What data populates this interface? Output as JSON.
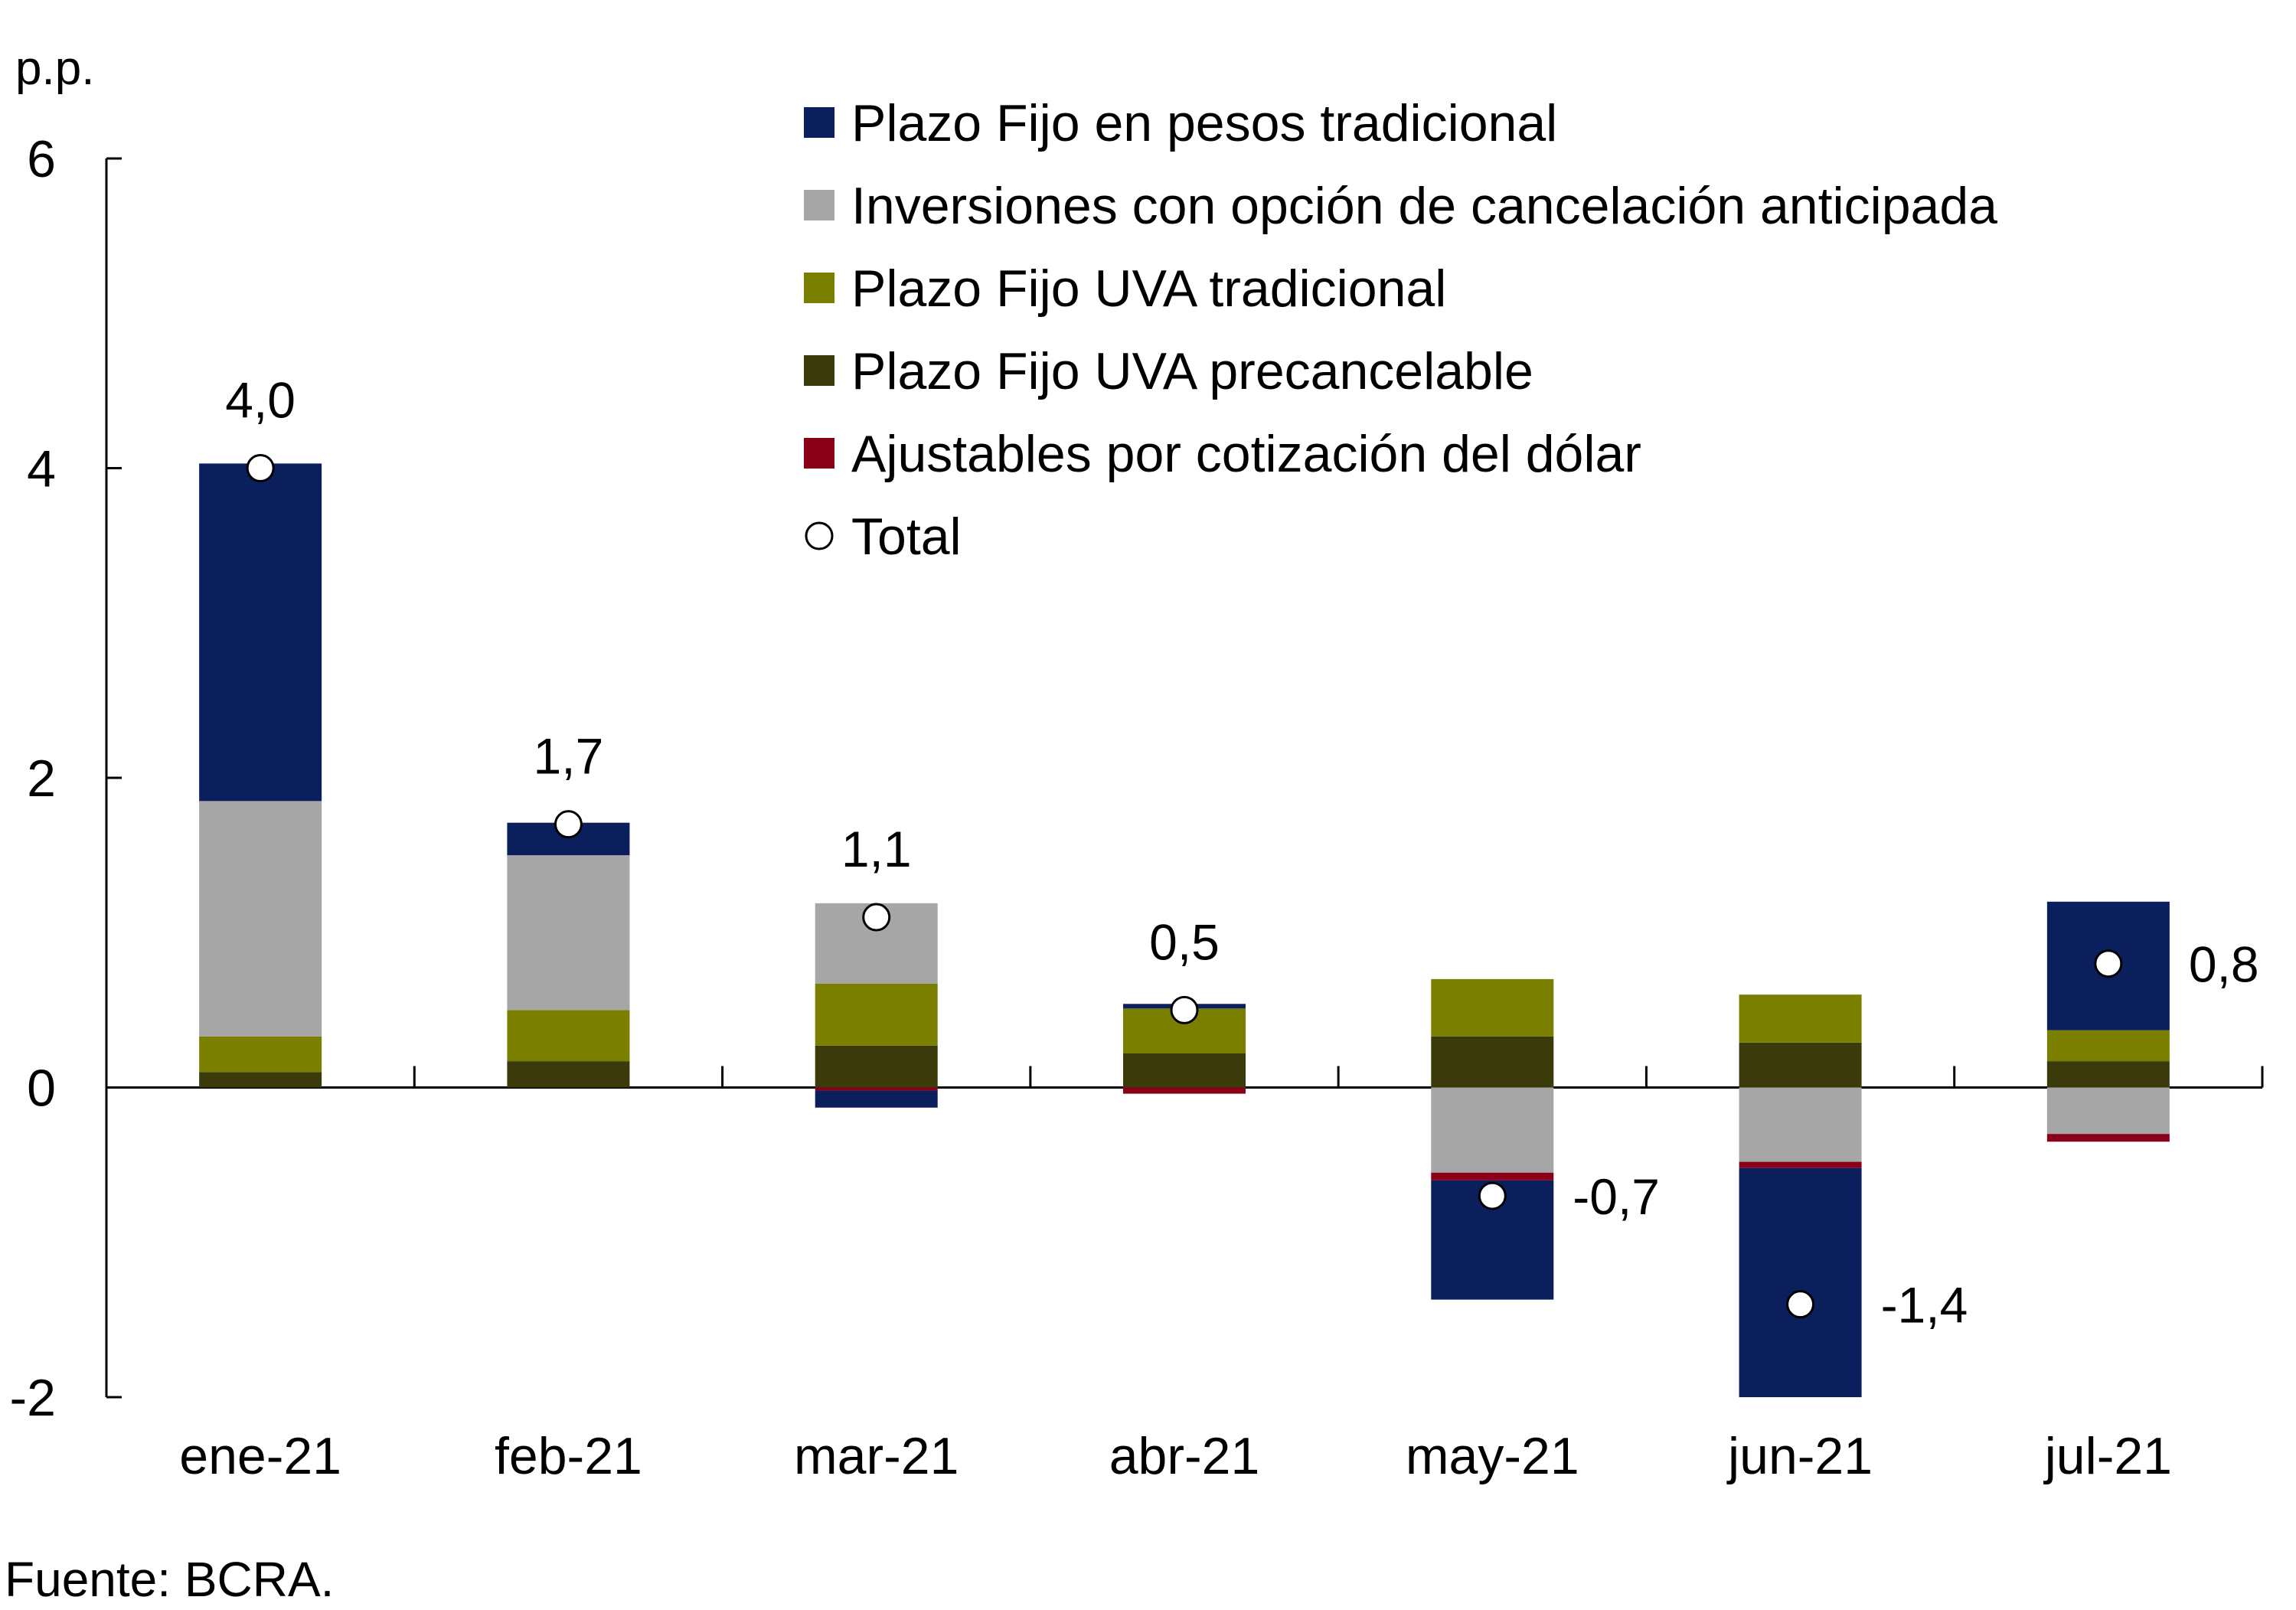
{
  "chart_data": {
    "type": "bar",
    "stacked": true,
    "unit_label": "p.p.",
    "source": "Fuente: BCRA.",
    "categories": [
      "ene-21",
      "feb-21",
      "mar-21",
      "abr-21",
      "may-21",
      "jun-21",
      "jul-21"
    ],
    "ylim": [
      -2,
      6
    ],
    "yticks": [
      -2,
      0,
      2,
      4,
      6
    ],
    "grid": false,
    "legend_position": "top-right",
    "series": [
      {
        "name": "Plazo Fijo UVA precancelable",
        "color": "#3a3a0a",
        "values": [
          0.1,
          0.17,
          0.27,
          0.22,
          0.33,
          0.29,
          0.17
        ]
      },
      {
        "name": "Plazo Fijo UVA tradicional",
        "color": "#7a7f00",
        "values": [
          0.23,
          0.33,
          0.4,
          0.29,
          0.37,
          0.31,
          0.2
        ]
      },
      {
        "name": "Inversiones con opción de cancelación anticipada",
        "color": "#a6a6a6",
        "values": [
          1.52,
          1.0,
          0.52,
          0.0,
          -0.55,
          -0.48,
          -0.3
        ]
      },
      {
        "name": "Ajustables por cotización del dólar",
        "color": "#8b0019",
        "values": [
          0.0,
          0.0,
          -0.02,
          -0.04,
          -0.05,
          -0.04,
          -0.05
        ]
      },
      {
        "name": "Plazo Fijo en pesos tradicional",
        "color": "#0b1f5c",
        "values": [
          2.18,
          0.21,
          -0.11,
          0.03,
          -0.77,
          -1.48,
          0.83
        ]
      }
    ],
    "total": {
      "name": "Total",
      "values": [
        4.0,
        1.7,
        1.1,
        0.5,
        -0.7,
        -1.4,
        0.8
      ],
      "labels": [
        "4,0",
        "1,7",
        "1,1",
        "0,5",
        "-0,7",
        "-1,4",
        "0,8"
      ]
    },
    "legend_order": [
      "Plazo Fijo en pesos tradicional",
      "Inversiones con opción de cancelación anticipada",
      "Plazo Fijo UVA tradicional",
      "Plazo Fijo UVA precancelable",
      "Ajustables por cotización del dólar",
      "Total"
    ]
  }
}
